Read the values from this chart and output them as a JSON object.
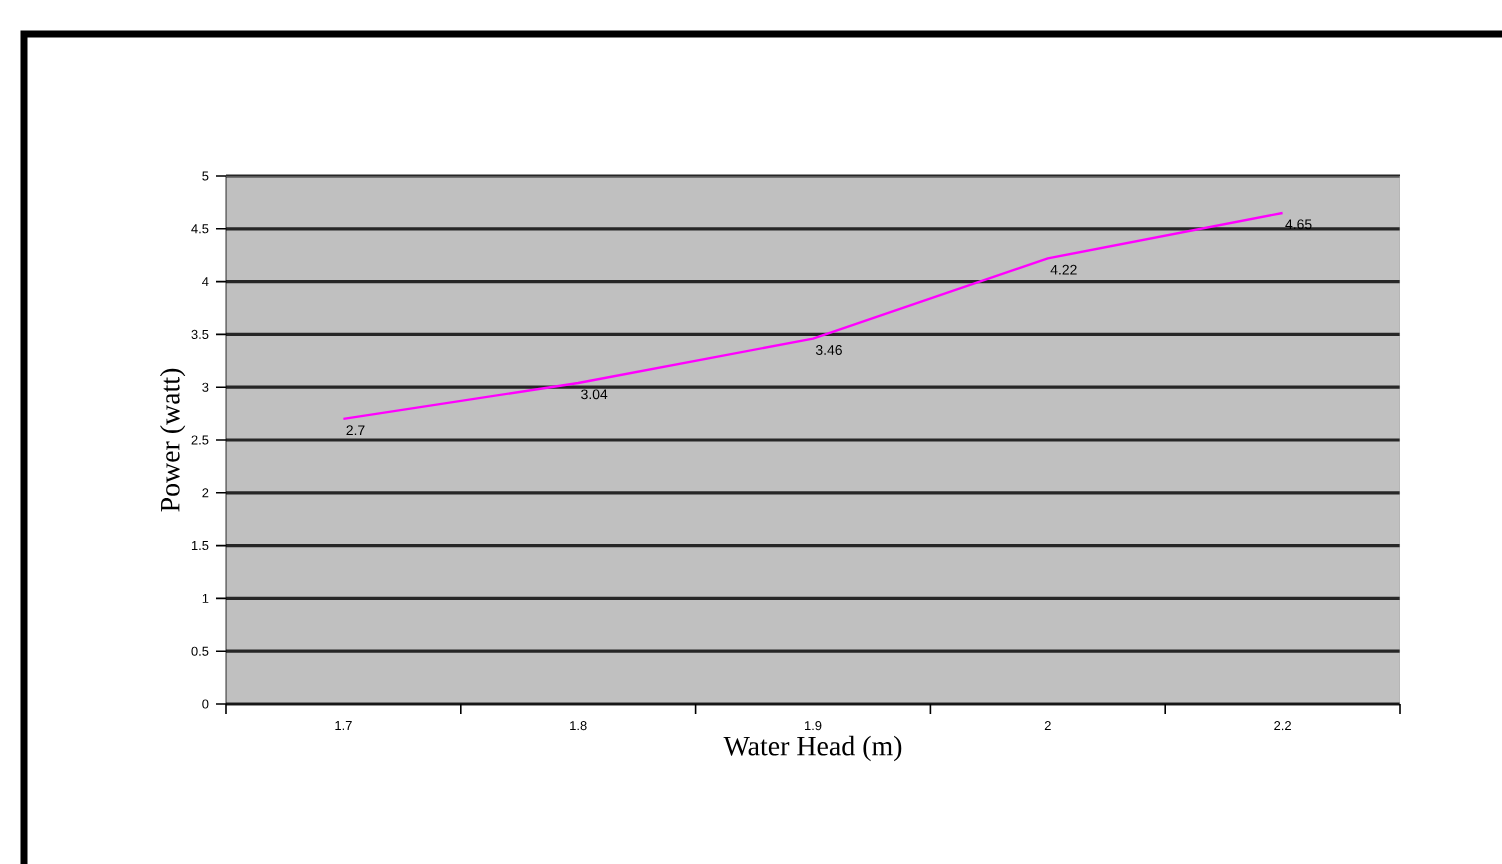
{
  "chart_data": {
    "type": "line",
    "xlabel": "Water Head (m)",
    "ylabel": "Power (watt)",
    "categories": [
      "1.7",
      "1.8",
      "1.9",
      "2",
      "2.2"
    ],
    "values": [
      2.7,
      3.04,
      3.46,
      4.22,
      4.65
    ],
    "color": "#ff00ff",
    "ylim": [
      0,
      5
    ],
    "yticks": [
      0,
      0.5,
      1,
      1.5,
      2,
      2.5,
      3,
      3.5,
      4,
      4.5,
      5
    ],
    "grid": "y",
    "data_labels": true,
    "marker": "none"
  }
}
